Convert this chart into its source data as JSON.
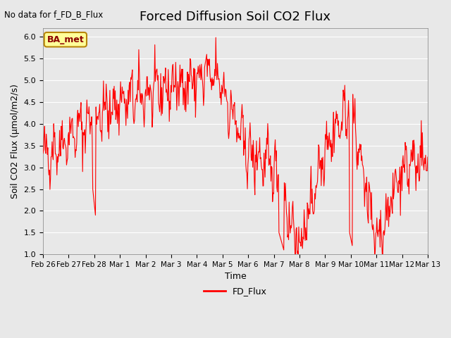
{
  "title": "Forced Diffusion Soil CO2 Flux",
  "no_data_text": "No data for f_FD_B_Flux",
  "ylabel": "Soil CO2 Flux (μmol/m2/s)",
  "xlabel": "Time",
  "ylim": [
    1.0,
    6.2
  ],
  "legend_label": "FD_Flux",
  "legend_label_box": "BA_met",
  "line_color": "#FF0000",
  "bg_color": "#E8E8E8",
  "xtick_labels": [
    "Feb 26",
    "Feb 27",
    "Feb 28",
    "Mar 1",
    "Mar 2",
    "Mar 3",
    "Mar 4",
    "Mar 5",
    "Mar 6",
    "Mar 7",
    "Mar 8",
    "Mar 9",
    "Mar 10",
    "Mar 11",
    "Mar 12",
    "Mar 13"
  ],
  "xtick_positions": [
    0,
    1,
    2,
    3,
    4,
    5,
    6,
    7,
    8,
    9,
    10,
    11,
    12,
    13,
    14,
    15
  ],
  "ytick_labels": [
    "1.0",
    "1.5",
    "2.0",
    "2.5",
    "3.0",
    "3.5",
    "4.0",
    "4.5",
    "5.0",
    "5.5",
    "6.0"
  ],
  "ytick_values": [
    1.0,
    1.5,
    2.0,
    2.5,
    3.0,
    3.5,
    4.0,
    4.5,
    5.0,
    5.5,
    6.0
  ]
}
